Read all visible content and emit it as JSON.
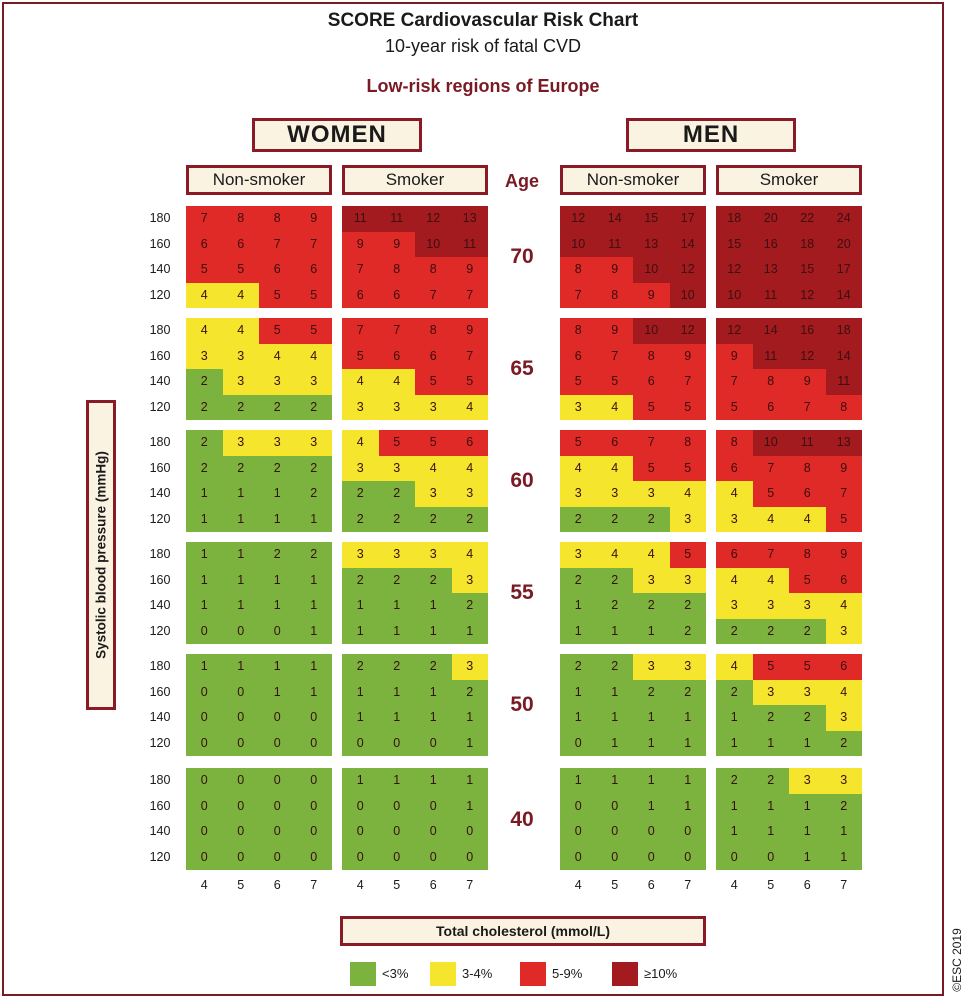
{
  "title": "SCORE Cardiovascular Risk Chart",
  "subtitle": "10-year risk of fatal CVD",
  "region": "Low-risk regions of Europe",
  "groups": {
    "women": "WOMEN",
    "men": "MEN",
    "non_smoker": "Non-smoker",
    "smoker": "Smoker"
  },
  "age_header": "Age",
  "y_axis_label": "Systolic blood pressure (mmHg)",
  "x_axis_label": "Total cholesterol (mmol/L)",
  "copyright": "©ESC 2019",
  "colors": {
    "green": "#7bb33e",
    "yellow": "#f5e52c",
    "red": "#e02a27",
    "darkred": "#a31a1f"
  },
  "legend": [
    {
      "label": "<3%",
      "color": "#7bb33e"
    },
    {
      "label": "3-4%",
      "color": "#f5e52c"
    },
    {
      "label": "5-9%",
      "color": "#e02a27"
    },
    {
      "label": "≥10%",
      "color": "#a31a1f"
    }
  ],
  "chart_data": {
    "type": "heatmap",
    "title": "SCORE Cardiovascular Risk Chart",
    "subtitle": "10-year risk of fatal CVD",
    "ages": [
      "70",
      "65",
      "60",
      "55",
      "50",
      "40"
    ],
    "sbp_labels": [
      "180",
      "160",
      "140",
      "120"
    ],
    "cholesterol_labels": [
      "4",
      "5",
      "6",
      "7"
    ],
    "panels": [
      {
        "id": "women-non-smoker",
        "values": [
          [
            [
              7,
              8,
              8,
              9
            ],
            [
              6,
              6,
              7,
              7
            ],
            [
              5,
              5,
              6,
              6
            ],
            [
              4,
              4,
              5,
              5
            ]
          ],
          [
            [
              4,
              4,
              5,
              5
            ],
            [
              3,
              3,
              4,
              4
            ],
            [
              2,
              3,
              3,
              3
            ],
            [
              2,
              2,
              2,
              2
            ]
          ],
          [
            [
              2,
              3,
              3,
              3
            ],
            [
              2,
              2,
              2,
              2
            ],
            [
              1,
              1,
              1,
              2
            ],
            [
              1,
              1,
              1,
              1
            ]
          ],
          [
            [
              1,
              1,
              2,
              2
            ],
            [
              1,
              1,
              1,
              1
            ],
            [
              1,
              1,
              1,
              1
            ],
            [
              0,
              0,
              0,
              1
            ]
          ],
          [
            [
              1,
              1,
              1,
              1
            ],
            [
              0,
              0,
              1,
              1
            ],
            [
              0,
              0,
              0,
              0
            ],
            [
              0,
              0,
              0,
              0
            ]
          ],
          [
            [
              0,
              0,
              0,
              0
            ],
            [
              0,
              0,
              0,
              0
            ],
            [
              0,
              0,
              0,
              0
            ],
            [
              0,
              0,
              0,
              0
            ]
          ]
        ]
      },
      {
        "id": "women-smoker",
        "values": [
          [
            [
              11,
              11,
              12,
              13
            ],
            [
              9,
              9,
              10,
              11
            ],
            [
              7,
              8,
              8,
              9
            ],
            [
              6,
              6,
              7,
              7
            ]
          ],
          [
            [
              7,
              7,
              8,
              9
            ],
            [
              5,
              6,
              6,
              7
            ],
            [
              4,
              4,
              5,
              5
            ],
            [
              3,
              3,
              3,
              4
            ]
          ],
          [
            [
              4,
              5,
              5,
              6
            ],
            [
              3,
              3,
              4,
              4
            ],
            [
              2,
              2,
              3,
              3
            ],
            [
              2,
              2,
              2,
              2
            ]
          ],
          [
            [
              3,
              3,
              3,
              4
            ],
            [
              2,
              2,
              2,
              3
            ],
            [
              1,
              1,
              1,
              2
            ],
            [
              1,
              1,
              1,
              1
            ]
          ],
          [
            [
              2,
              2,
              2,
              3
            ],
            [
              1,
              1,
              1,
              2
            ],
            [
              1,
              1,
              1,
              1
            ],
            [
              0,
              0,
              0,
              1
            ]
          ],
          [
            [
              1,
              1,
              1,
              1
            ],
            [
              0,
              0,
              0,
              1
            ],
            [
              0,
              0,
              0,
              0
            ],
            [
              0,
              0,
              0,
              0
            ]
          ]
        ]
      },
      {
        "id": "men-non-smoker",
        "values": [
          [
            [
              12,
              14,
              15,
              17
            ],
            [
              10,
              11,
              13,
              14
            ],
            [
              8,
              9,
              10,
              12
            ],
            [
              7,
              8,
              9,
              10
            ]
          ],
          [
            [
              8,
              9,
              10,
              12
            ],
            [
              6,
              7,
              8,
              9
            ],
            [
              5,
              5,
              6,
              7
            ],
            [
              3,
              4,
              5,
              5
            ]
          ],
          [
            [
              5,
              6,
              7,
              8
            ],
            [
              4,
              4,
              5,
              5
            ],
            [
              3,
              3,
              3,
              4
            ],
            [
              2,
              2,
              2,
              3
            ]
          ],
          [
            [
              3,
              4,
              4,
              5
            ],
            [
              2,
              2,
              3,
              3
            ],
            [
              1,
              2,
              2,
              2
            ],
            [
              1,
              1,
              1,
              2
            ]
          ],
          [
            [
              2,
              2,
              3,
              3
            ],
            [
              1,
              1,
              2,
              2
            ],
            [
              1,
              1,
              1,
              1
            ],
            [
              0,
              1,
              1,
              1
            ]
          ],
          [
            [
              1,
              1,
              1,
              1
            ],
            [
              0,
              0,
              1,
              1
            ],
            [
              0,
              0,
              0,
              0
            ],
            [
              0,
              0,
              0,
              0
            ]
          ]
        ]
      },
      {
        "id": "men-smoker",
        "values": [
          [
            [
              18,
              20,
              22,
              24
            ],
            [
              15,
              16,
              18,
              20
            ],
            [
              12,
              13,
              15,
              17
            ],
            [
              10,
              11,
              12,
              14
            ]
          ],
          [
            [
              12,
              14,
              16,
              18
            ],
            [
              9,
              11,
              12,
              14
            ],
            [
              7,
              8,
              9,
              11
            ],
            [
              5,
              6,
              7,
              8
            ]
          ],
          [
            [
              8,
              10,
              11,
              13
            ],
            [
              6,
              7,
              8,
              9
            ],
            [
              4,
              5,
              6,
              7
            ],
            [
              3,
              4,
              4,
              5
            ]
          ],
          [
            [
              6,
              7,
              8,
              9
            ],
            [
              4,
              4,
              5,
              6
            ],
            [
              3,
              3,
              3,
              4
            ],
            [
              2,
              2,
              2,
              3
            ]
          ],
          [
            [
              4,
              5,
              5,
              6
            ],
            [
              2,
              3,
              3,
              4
            ],
            [
              1,
              2,
              2,
              3
            ],
            [
              1,
              1,
              1,
              2
            ]
          ],
          [
            [
              2,
              2,
              3,
              3
            ],
            [
              1,
              1,
              1,
              2
            ],
            [
              1,
              1,
              1,
              1
            ],
            [
              0,
              0,
              1,
              1
            ]
          ]
        ]
      }
    ]
  }
}
